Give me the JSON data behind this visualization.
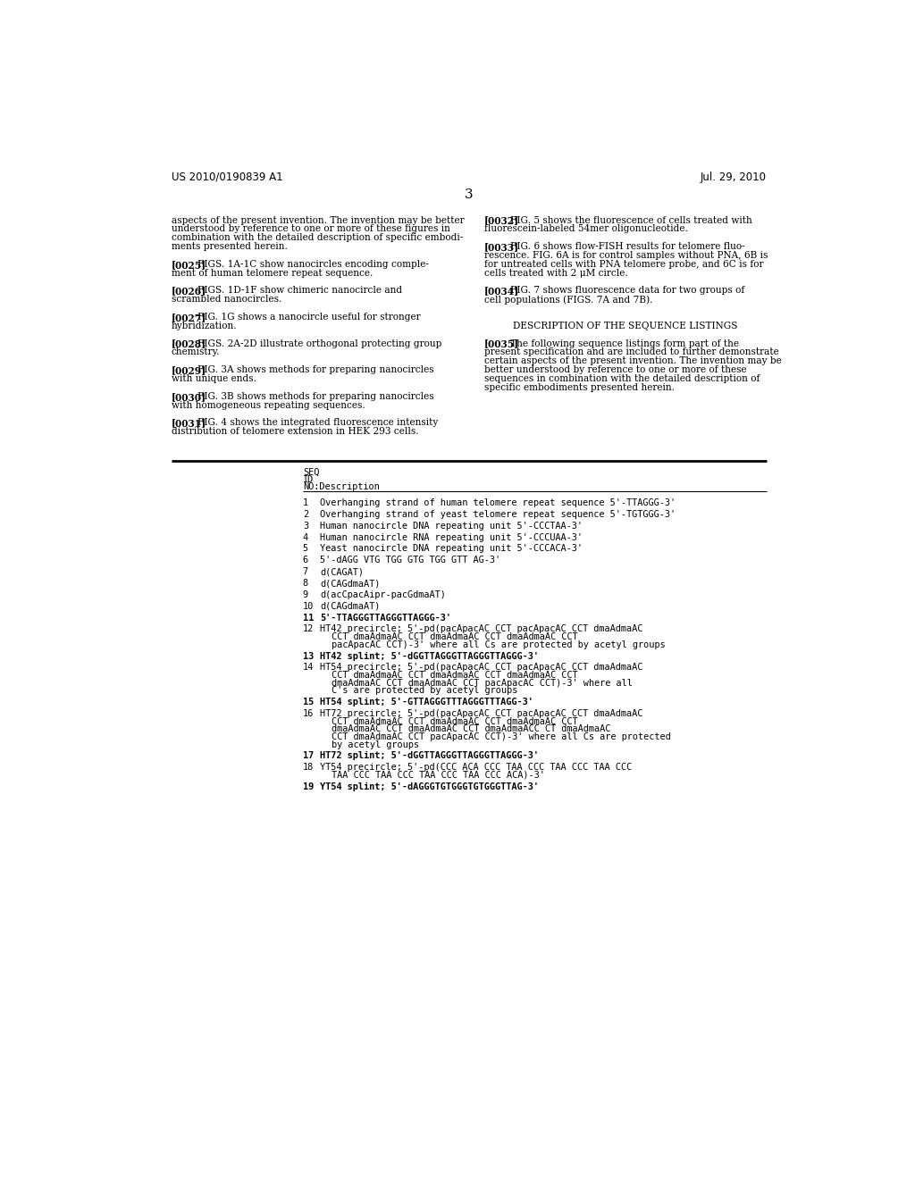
{
  "background_color": "#ffffff",
  "header_left": "US 2010/0190839 A1",
  "header_right": "Jul. 29, 2010",
  "page_number": "3",
  "left_col_lines": [
    "aspects of the present invention. The invention may be better",
    "understood by reference to one or more of these figures in",
    "combination with the detailed description of specific embodi-",
    "ments presented herein.",
    "",
    "[0025]   FIGS. 1A-1C show nanocircles encoding comple-",
    "ment of human telomere repeat sequence.",
    "",
    "[0026]   FIGS. 1D-1F show chimeric nanocircle and",
    "scrambled nanocircles.",
    "",
    "[0027]   FIG. 1G shows a nanocircle useful for stronger",
    "hybridization.",
    "",
    "[0028]   FIGS. 2A-2D illustrate orthogonal protecting group",
    "chemistry.",
    "",
    "[0029]   FIG. 3A shows methods for preparing nanocircles",
    "with unique ends.",
    "",
    "[0030]   FIG. 3B shows methods for preparing nanocircles",
    "with homogeneous repeating sequences.",
    "",
    "[0031]   FIG. 4 shows the integrated fluorescence intensity",
    "distribution of telomere extension in HEK 293 cells."
  ],
  "left_col_bold_tags": [
    "[0025]",
    "[0026]",
    "[0027]",
    "[0028]",
    "[0029]",
    "[0030]",
    "[0031]"
  ],
  "right_col_lines": [
    "[0032]   FIG. 5 shows the fluorescence of cells treated with",
    "fluorescein-labeled 54mer oligonucleotide.",
    "",
    "[0033]   FIG. 6 shows flow-FISH results for telomere fluo-",
    "rescence. FIG. 6A is for control samples without PNA, 6B is",
    "for untreated cells with PNA telomere probe, and 6C is for",
    "cells treated with 2 μM circle.",
    "",
    "[0034]   FIG. 7 shows fluorescence data for two groups of",
    "cell populations (FIGS. 7A and 7B).",
    "",
    "",
    "DESCRIPTION OF THE SEQUENCE LISTINGS",
    "",
    "[0035]   The following sequence listings form part of the",
    "present specification and are included to further demonstrate",
    "certain aspects of the present invention. The invention may be",
    "better understood by reference to one or more of these",
    "sequences in combination with the detailed description of",
    "specific embodiments presented herein."
  ],
  "right_col_bold_tags": [
    "[0032]",
    "[0033]",
    "[0034]",
    "[0035]"
  ],
  "right_col_centered_lines": [
    "DESCRIPTION OF THE SEQUENCE LISTINGS"
  ],
  "table_header_lines": [
    "SEQ",
    "ID",
    "NO:Description"
  ],
  "table_entries": [
    {
      "num": "1",
      "lines": [
        "Overhanging strand of human telomere repeat sequence 5'-TTAGGG-3'"
      ],
      "bold": false
    },
    {
      "num": "2",
      "lines": [
        "Overhanging strand of yeast telomere repeat sequence 5'-TGTGGG-3'"
      ],
      "bold": false
    },
    {
      "num": "3",
      "lines": [
        "Human nanocircle DNA repeating unit 5'-CCCTAA-3'"
      ],
      "bold": false
    },
    {
      "num": "4",
      "lines": [
        "Human nanocircle RNA repeating unit 5'-CCCUAA-3'"
      ],
      "bold": false
    },
    {
      "num": "5",
      "lines": [
        "Yeast nanocircle DNA repeating unit 5'-CCCACA-3'"
      ],
      "bold": false
    },
    {
      "num": "6",
      "lines": [
        "5'-dAGG VTG TGG GTG TGG GTT AG-3'"
      ],
      "bold": false
    },
    {
      "num": "7",
      "lines": [
        "d(CAGAT)"
      ],
      "bold": false
    },
    {
      "num": "8",
      "lines": [
        "d(CAGdmaAT)"
      ],
      "bold": false
    },
    {
      "num": "9",
      "lines": [
        "d(acCpacAipr-pacGdmaAT)"
      ],
      "bold": false
    },
    {
      "num": "10",
      "lines": [
        "d(CAGdmaAT)"
      ],
      "bold": false
    },
    {
      "num": "11",
      "lines": [
        "5'-TTAGGGTTAGGGTTAGGG-3'"
      ],
      "bold": true
    },
    {
      "num": "12",
      "lines": [
        "HT42 precircle; 5'-pd(pacApacAC CCT pacApacAC CCT dmaAdmaAC",
        "   CCT dmaAdmaAC CCT dmaAdmaAC CCT dmaAdmaAC CCT",
        "   pacApacAC CCT)-3' where all Cs are protected by acetyl groups"
      ],
      "bold": false
    },
    {
      "num": "13",
      "lines": [
        "HT42 splint; 5'-dGGTTAGGGTTAGGGTTAGGG-3'"
      ],
      "bold": true
    },
    {
      "num": "14",
      "lines": [
        "HT54 precircle; 5'-pd(pacApacAC CCT pacApacAC CCT dmaAdmaAC",
        "   CCT dmaAdmaAC CCT dmaAdmaAC CCT dmaAdmaAC CCT",
        "   dmaAdmaAC CCT dmaAdmaAC CCT pacApacAC CCT)-3' where all",
        "   C's are protected by acetyl groups"
      ],
      "bold": false
    },
    {
      "num": "15",
      "lines": [
        "HT54 splint; 5'-GTTAGGGTTTAGGGTTTAGG-3'"
      ],
      "bold": true
    },
    {
      "num": "16",
      "lines": [
        "HT72 precircle; 5'-pd(pacApacAC CCT pacApacAC CCT dmaAdmaAC",
        "   CCT dmaAdmaAC CCT dmaAdmaAC CCT dmaAdmaAC CCT",
        "   dmaAdmaAC CCT dmaAdmaAC CCT dmaAdmaACC CT dmaAdmaAC",
        "   CCT dmaAdmaAC CCT pacApacAC CCT)-3' where all Cs are protected",
        "   by acetyl groups"
      ],
      "bold": false
    },
    {
      "num": "17",
      "lines": [
        "HT72 splint; 5'-dGGTTAGGGTTAGGGTTAGGG-3'"
      ],
      "bold": true
    },
    {
      "num": "18",
      "lines": [
        "YT54 precircle; 5'-pd(CCC ACA CCC TAA CCC TAA CCC TAA CCC",
        "   TAA CCC TAA CCC TAA CCC TAA CCC ACA)-3'"
      ],
      "bold": false
    },
    {
      "num": "19",
      "lines": [
        "YT54 splint; 5'-dAGGGTGTGGGTGTGGGTTAG-3'"
      ],
      "bold": true
    }
  ]
}
